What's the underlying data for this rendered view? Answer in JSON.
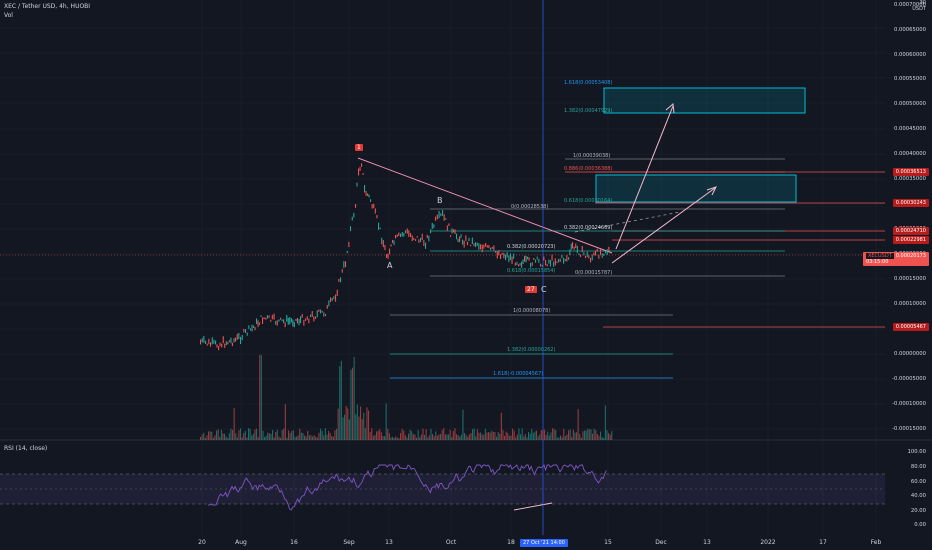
{
  "header": {
    "symbol_line": "XEC / Tether USD, 4h, HUOBI",
    "volume_label": "Vol",
    "rsi_label": "RSI (14, close)"
  },
  "top_right": {
    "value": "30",
    "currency": "USDT"
  },
  "price_axis": [
    "0.00070000",
    "0.00065000",
    "0.00060000",
    "0.00055000",
    "0.00050000",
    "0.00045000",
    "0.00040000",
    "0.00035000",
    "0.00030000",
    "0.00025000",
    "0.00020000",
    "0.00015000",
    "0.00010000",
    "0.00005000",
    "0.00000000",
    "-0.00005000",
    "-0.00010000",
    "-0.00015000"
  ],
  "rsi_axis": [
    "100.00",
    "80.00",
    "60.00",
    "40.00",
    "20.00",
    "0.00"
  ],
  "time_axis": [
    "20",
    "Aug",
    "16",
    "Sep",
    "13",
    "Oct",
    "18",
    "15",
    "Dec",
    "13",
    "2022",
    "17",
    "Feb"
  ],
  "cursor_time": "27 Oct '21 14:00",
  "price_tags": [
    "0.00036513",
    "0.00030243",
    "0.00024710",
    "0.00022981",
    "0.00005467"
  ],
  "current_price": {
    "symbol": "XECUSDT",
    "price": "0.00020173",
    "countdown": "03:15:00"
  },
  "waves": {
    "w1": "1",
    "a": "A",
    "b": "B",
    "c_badge": "27",
    "c": "C"
  },
  "fib_upper": {
    "l1618": "1.618(0.00053408)",
    "l1382": "1.382(0.00047929)",
    "l1": "1(0.00039038)",
    "l0886": "0.886(0.00036388)",
    "l0618": "0.618(0.00030164)",
    "l0": "0(0.00028538)",
    "l0382": "0.382(0.00024669)"
  },
  "fib_lower": {
    "l0382": "0.382(0.00020723)",
    "l0618": "0.618(0.00015854)",
    "l0": "0(0.00015787)",
    "l1": "1(0.00008078)",
    "l1382": "1.382(0.00000262)",
    "l1618": "1.618(-0.00004567)"
  },
  "colors": {
    "background": "#131722",
    "accent": "#2962ff",
    "bull": "#26a69a",
    "bear": "#ef5350",
    "rsi": "#7e57c2"
  }
}
